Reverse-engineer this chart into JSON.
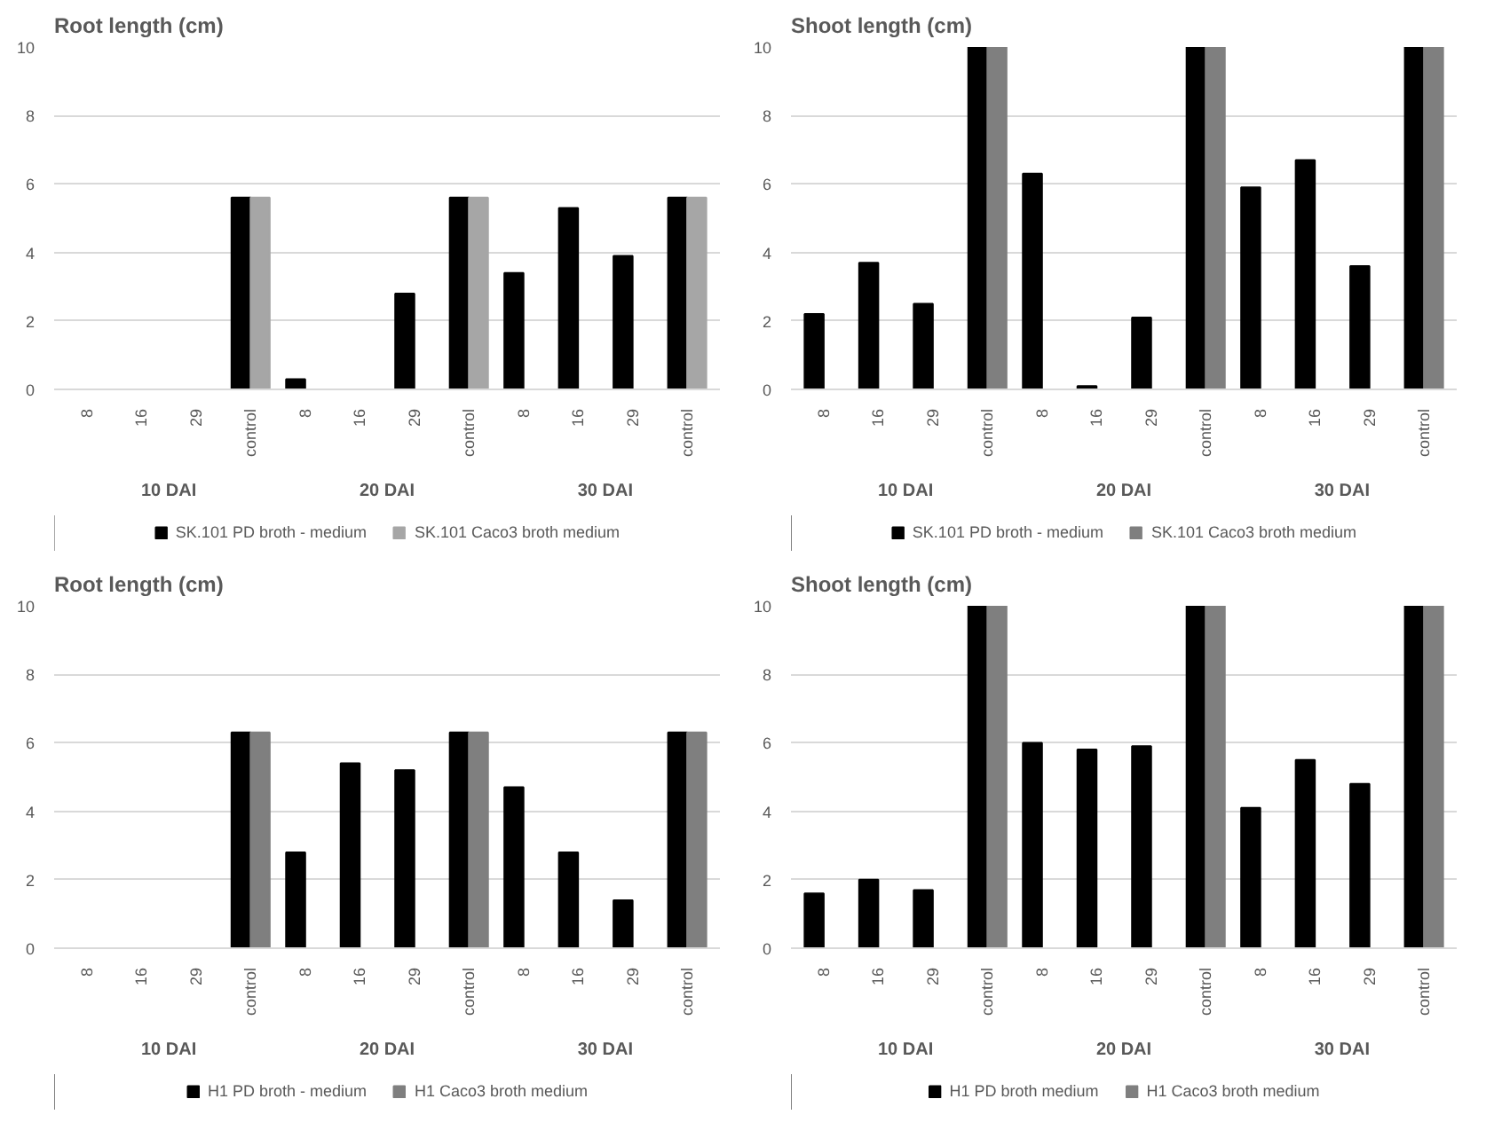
{
  "chart_data": [
    {
      "type": "bar",
      "title": "Root length (cm)",
      "categories": [
        "8",
        "16",
        "29",
        "control",
        "8",
        "16",
        "29",
        "control",
        "8",
        "16",
        "29",
        "control"
      ],
      "annotations": [
        "10 DAI",
        "20 DAI",
        "30 DAI"
      ],
      "ylim": [
        0,
        10
      ],
      "yticks": [
        0,
        2,
        4,
        6,
        8,
        10
      ],
      "grid": "y",
      "legend": "bottom",
      "series": [
        {
          "name": "SK.101 PD broth - medium",
          "color": "#000000",
          "values": [
            0,
            0,
            0,
            5.6,
            0.3,
            0,
            2.8,
            5.6,
            3.4,
            5.3,
            3.9,
            5.6
          ]
        },
        {
          "name": "SK.101 Caco3 broth medium",
          "color": "#a6a6a6",
          "values": [
            0,
            0,
            0,
            5.6,
            0,
            0,
            0,
            5.6,
            0,
            0,
            0,
            5.6
          ]
        }
      ]
    },
    {
      "type": "bar",
      "title": "Shoot length (cm)",
      "categories": [
        "8",
        "16",
        "29",
        "control",
        "8",
        "16",
        "29",
        "control",
        "8",
        "16",
        "29",
        "control"
      ],
      "annotations": [
        "10 DAI",
        "20 DAI",
        "30 DAI"
      ],
      "ylim": [
        0,
        10
      ],
      "yticks": [
        0,
        2,
        4,
        6,
        8,
        10
      ],
      "grid": "y",
      "legend": "bottom",
      "series": [
        {
          "name": "SK.101 PD broth - medium",
          "color": "#000000",
          "values": [
            2.2,
            3.7,
            2.5,
            10,
            6.3,
            0.1,
            2.1,
            10,
            5.9,
            6.7,
            3.6,
            10
          ]
        },
        {
          "name": "SK.101 Caco3 broth medium",
          "color": "#7f7f7f",
          "values": [
            0,
            0,
            0,
            10,
            0,
            0,
            0,
            10,
            0,
            0,
            0,
            10
          ]
        }
      ]
    },
    {
      "type": "bar",
      "title": "Root length (cm)",
      "categories": [
        "8",
        "16",
        "29",
        "control",
        "8",
        "16",
        "29",
        "control",
        "8",
        "16",
        "29",
        "control"
      ],
      "annotations": [
        "10 DAI",
        "20 DAI",
        "30 DAI"
      ],
      "ylim": [
        0,
        10
      ],
      "yticks": [
        0,
        2,
        4,
        6,
        8,
        10
      ],
      "grid": "y",
      "legend": "bottom",
      "series": [
        {
          "name": "H1 PD broth - medium",
          "color": "#000000",
          "values": [
            0,
            0,
            0,
            6.3,
            2.8,
            5.4,
            5.2,
            6.3,
            4.7,
            2.8,
            1.4,
            6.3
          ]
        },
        {
          "name": "H1 Caco3 broth medium",
          "color": "#7f7f7f",
          "values": [
            0,
            0,
            0,
            6.3,
            0,
            0,
            0,
            6.3,
            0,
            0,
            0,
            6.3
          ]
        }
      ]
    },
    {
      "type": "bar",
      "title": "Shoot length (cm)",
      "categories": [
        "8",
        "16",
        "29",
        "control",
        "8",
        "16",
        "29",
        "control",
        "8",
        "16",
        "29",
        "control"
      ],
      "annotations": [
        "10 DAI",
        "20 DAI",
        "30 DAI"
      ],
      "ylim": [
        0,
        10
      ],
      "yticks": [
        0,
        2,
        4,
        6,
        8,
        10
      ],
      "grid": "y",
      "legend": "bottom",
      "series": [
        {
          "name": "H1 PD broth medium",
          "color": "#000000",
          "values": [
            1.6,
            2.0,
            1.7,
            10,
            6.0,
            5.8,
            5.9,
            10,
            4.1,
            5.5,
            4.8,
            10
          ]
        },
        {
          "name": "H1 Caco3 broth medium",
          "color": "#7f7f7f",
          "values": [
            0,
            0,
            0,
            10,
            0,
            0,
            0,
            10,
            0,
            0,
            0,
            10
          ]
        }
      ]
    }
  ]
}
